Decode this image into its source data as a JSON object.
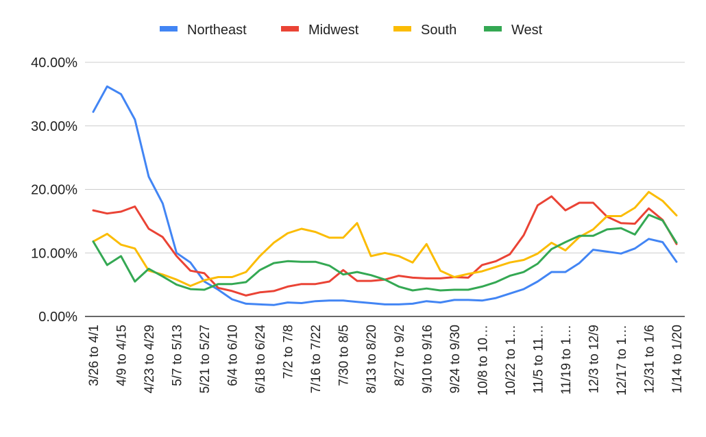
{
  "chart_data": {
    "type": "line",
    "title": "",
    "xlabel": "",
    "ylabel": "",
    "ylim": [
      0,
      0.4
    ],
    "y_ticks": [
      "0.00%",
      "10.00%",
      "20.00%",
      "30.00%",
      "40.00%"
    ],
    "grid": true,
    "legend_position": "top",
    "x_tick_labels": [
      "3/26 to 4/1",
      "4/9 to 4/15",
      "4/23 to 4/29",
      "5/7 to 5/13",
      "5/21 to 5/27",
      "6/4 to 6/10",
      "6/18 to 6/24",
      "7/2 to 7/8",
      "7/16 to 7/22",
      "7/30 to 8/5",
      "8/13 to 8/20",
      "8/27 to 9/2",
      "9/10 to 9/16",
      "9/24 to 9/30",
      "10/8 to 10…",
      "10/22 to 1…",
      "11/5 to 11…",
      "11/19 to 1…",
      "12/3 to 12/9",
      "12/17 to 1…",
      "12/31 to 1/6",
      "1/14 to 1/20"
    ],
    "series": [
      {
        "name": "Northeast",
        "color": "#4285f4",
        "values": [
          0.322,
          0.362,
          0.35,
          0.31,
          0.22,
          0.178,
          0.1,
          0.085,
          0.055,
          0.042,
          0.027,
          0.02,
          0.019,
          0.018,
          0.022,
          0.021,
          0.024,
          0.025,
          0.025,
          0.023,
          0.021,
          0.019,
          0.019,
          0.02,
          0.024,
          0.022,
          0.026,
          0.026,
          0.025,
          0.029,
          0.036,
          0.043,
          0.055,
          0.07,
          0.07,
          0.084,
          0.105,
          0.102,
          0.099,
          0.107,
          0.122,
          0.117,
          0.086
        ]
      },
      {
        "name": "Midwest",
        "color": "#ea4335",
        "values": [
          0.167,
          0.162,
          0.165,
          0.173,
          0.138,
          0.125,
          0.095,
          0.072,
          0.068,
          0.045,
          0.04,
          0.033,
          0.038,
          0.04,
          0.047,
          0.051,
          0.051,
          0.055,
          0.073,
          0.056,
          0.056,
          0.058,
          0.064,
          0.061,
          0.06,
          0.06,
          0.062,
          0.061,
          0.081,
          0.087,
          0.098,
          0.128,
          0.175,
          0.189,
          0.167,
          0.179,
          0.179,
          0.157,
          0.147,
          0.146,
          0.17,
          0.152,
          0.114
        ]
      },
      {
        "name": "South",
        "color": "#fbbc04",
        "values": [
          0.118,
          0.13,
          0.113,
          0.107,
          0.072,
          0.066,
          0.058,
          0.048,
          0.057,
          0.062,
          0.062,
          0.07,
          0.095,
          0.116,
          0.131,
          0.138,
          0.133,
          0.124,
          0.124,
          0.147,
          0.095,
          0.1,
          0.095,
          0.085,
          0.114,
          0.072,
          0.062,
          0.067,
          0.071,
          0.078,
          0.085,
          0.089,
          0.099,
          0.116,
          0.104,
          0.125,
          0.137,
          0.158,
          0.158,
          0.171,
          0.196,
          0.182,
          0.159
        ]
      },
      {
        "name": "West",
        "color": "#34a853",
        "values": [
          0.118,
          0.081,
          0.095,
          0.055,
          0.075,
          0.063,
          0.05,
          0.043,
          0.042,
          0.051,
          0.051,
          0.054,
          0.073,
          0.084,
          0.087,
          0.086,
          0.086,
          0.08,
          0.066,
          0.07,
          0.065,
          0.058,
          0.047,
          0.041,
          0.044,
          0.041,
          0.042,
          0.042,
          0.047,
          0.054,
          0.064,
          0.07,
          0.083,
          0.106,
          0.117,
          0.127,
          0.127,
          0.137,
          0.139,
          0.129,
          0.16,
          0.151,
          0.116
        ]
      }
    ]
  }
}
